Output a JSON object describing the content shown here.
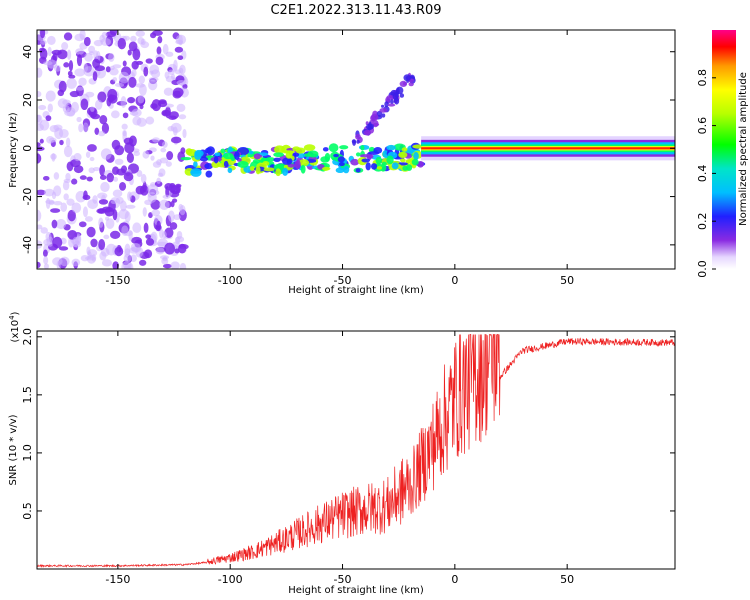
{
  "title": "C2E1.2022.313.11.43.R09",
  "chart_data": [
    {
      "type": "heatmap",
      "xlabel": "Height of straight line (km)",
      "ylabel": "Frequency (Hz)",
      "xlim": [
        -186,
        98
      ],
      "ylim": [
        -50,
        49
      ],
      "xticks": [
        -150,
        -100,
        -50,
        0,
        50
      ],
      "yticks": [
        -40,
        -20,
        0,
        20,
        40
      ],
      "colorbar": {
        "label": "Normalized spectral amplitude",
        "range": [
          0.0,
          1.0
        ],
        "ticks": [
          0.0,
          0.2,
          0.4,
          0.6,
          0.8
        ]
      },
      "regions": [
        {
          "name": "noise",
          "x": [
            -186,
            -120
          ],
          "y": [
            -50,
            49
          ],
          "amplitude": 0.2
        },
        {
          "name": "scattered-signal",
          "x": [
            -120,
            -15
          ],
          "y": [
            -12,
            10
          ],
          "amplitude": 0.35
        },
        {
          "name": "rising-branch",
          "x": [
            -45,
            -18
          ],
          "y": [
            0,
            35
          ],
          "amplitude": 0.25
        },
        {
          "name": "carrier",
          "x": [
            -15,
            98
          ],
          "y": [
            -2,
            2
          ],
          "amplitude": 0.9
        }
      ]
    },
    {
      "type": "line",
      "xlabel": "Height of straight line (km)",
      "ylabel": "SNR (10 * v/v)",
      "yscale_label": "(x10",
      "yscale_exponent": "4",
      "xlim": [
        -186,
        98
      ],
      "ylim": [
        0,
        2.05
      ],
      "xticks": [
        -150,
        -100,
        -50,
        0,
        50
      ],
      "yticks": [
        0.5,
        1.0,
        1.5,
        2.0
      ],
      "series": [
        {
          "name": "SNR",
          "color": "#ee2222",
          "x": [
            -186,
            -150,
            -120,
            -110,
            -100,
            -90,
            -80,
            -70,
            -60,
            -50,
            -40,
            -30,
            -20,
            -10,
            0,
            10,
            20,
            30,
            50,
            98
          ],
          "values": [
            0.02,
            0.02,
            0.03,
            0.05,
            0.08,
            0.12,
            0.18,
            0.25,
            0.32,
            0.38,
            0.42,
            0.45,
            0.6,
            0.9,
            1.25,
            1.45,
            1.65,
            1.88,
            1.96,
            1.95
          ]
        }
      ]
    }
  ]
}
